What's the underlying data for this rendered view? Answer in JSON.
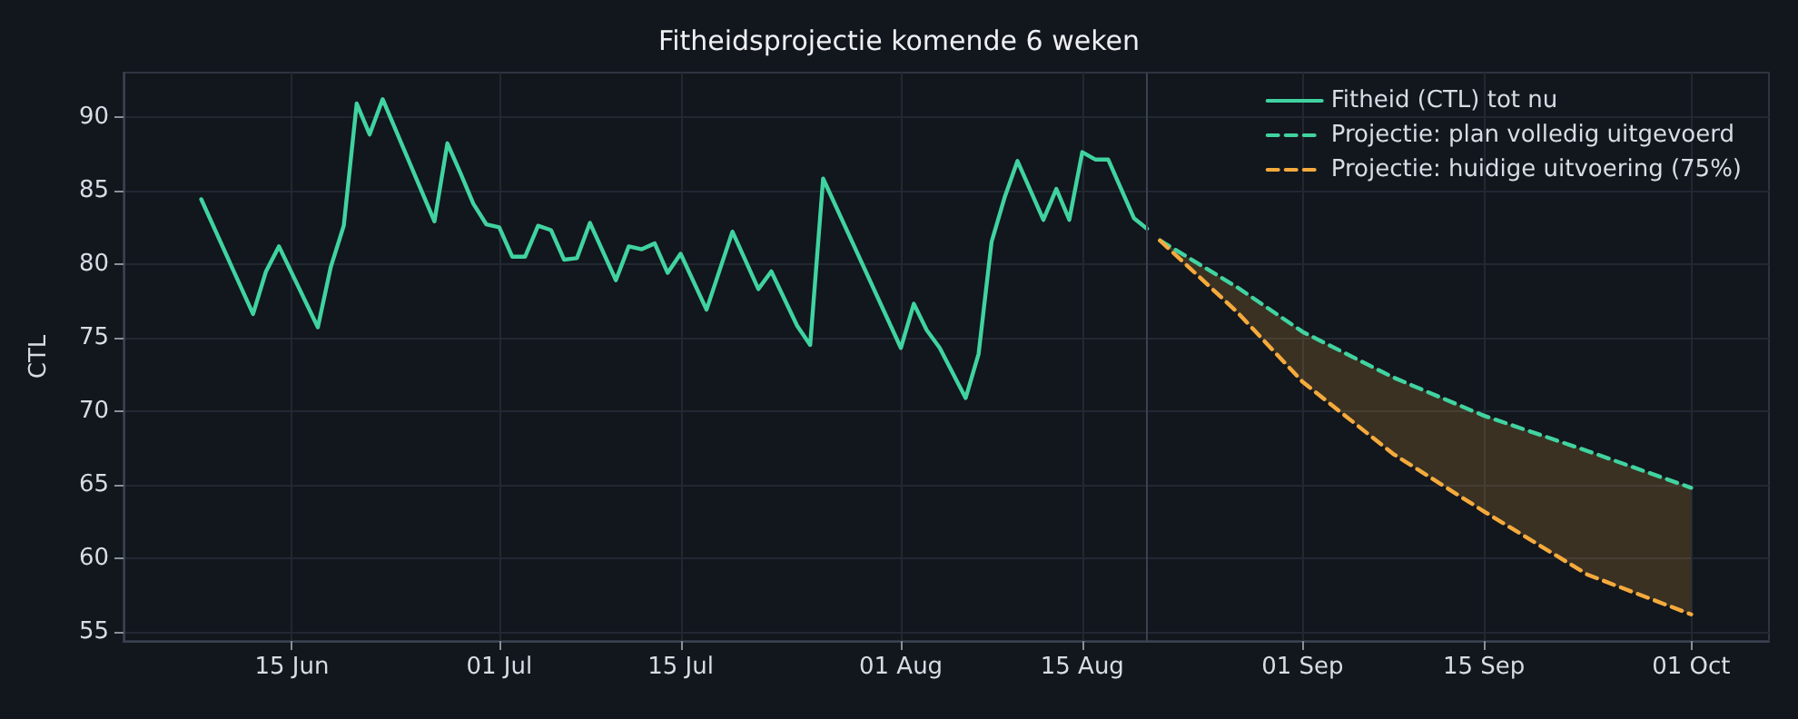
{
  "chart_data": {
    "type": "line",
    "title": "Fitheidsprojectie komende 6 weken",
    "ylabel": "CTL",
    "xlim": [
      "--06-02",
      "--10-07"
    ],
    "xticks": [
      {
        "value": "--06-15",
        "label": "15 Jun"
      },
      {
        "value": "--07-01",
        "label": "01 Jul"
      },
      {
        "value": "--07-15",
        "label": "15 Jul"
      },
      {
        "value": "--08-01",
        "label": "01 Aug"
      },
      {
        "value": "--08-15",
        "label": "15 Aug"
      },
      {
        "value": "--09-01",
        "label": "01 Sep"
      },
      {
        "value": "--09-15",
        "label": "15 Sep"
      },
      {
        "value": "--10-01",
        "label": "01 Oct"
      }
    ],
    "ylim": [
      54.4,
      93
    ],
    "yticks": [
      55,
      60,
      65,
      70,
      75,
      80,
      85,
      90
    ],
    "grid": true,
    "legend": "top right",
    "marker": "none",
    "ref_lines": [
      {
        "axis": "x",
        "value": "--08-20",
        "color": "#3a4150"
      }
    ],
    "series": [
      {
        "name": "Fitheid (CTL) tot nu",
        "color": "#40d3a0",
        "line_style": "solid",
        "x": [
          "--06-08",
          "--06-12",
          "--06-13",
          "--06-14",
          "--06-17",
          "--06-18",
          "--06-19",
          "--06-20",
          "--06-21",
          "--06-22",
          "--06-26",
          "--06-27",
          "--06-28",
          "--06-29",
          "--06-30",
          "--07-01",
          "--07-02",
          "--07-03",
          "--07-04",
          "--07-05",
          "--07-06",
          "--07-07",
          "--07-08",
          "--07-10",
          "--07-11",
          "--07-12",
          "--07-13",
          "--07-14",
          "--07-15",
          "--07-17",
          "--07-19",
          "--07-21",
          "--07-22",
          "--07-24",
          "--07-25",
          "--07-26",
          "--08-01",
          "--08-02",
          "--08-03",
          "--08-04",
          "--08-06",
          "--08-07",
          "--08-08",
          "--08-09",
          "--08-10",
          "--08-12",
          "--08-13",
          "--08-14",
          "--08-15",
          "--08-16",
          "--08-17",
          "--08-19",
          "--08-20"
        ],
        "values": [
          84.4,
          76.6,
          79.5,
          81.2,
          75.7,
          79.8,
          82.6,
          90.9,
          88.8,
          91.2,
          82.9,
          88.2,
          86.2,
          84.1,
          82.7,
          82.5,
          80.5,
          80.5,
          82.6,
          82.3,
          80.3,
          80.4,
          82.8,
          78.9,
          81.2,
          81.0,
          81.4,
          79.4,
          80.7,
          76.9,
          82.2,
          78.3,
          79.5,
          75.8,
          74.5,
          85.8,
          74.3,
          77.3,
          75.5,
          74.3,
          70.9,
          73.9,
          81.5,
          84.5,
          87.0,
          83.0,
          85.1,
          83.0,
          87.6,
          87.1,
          87.1,
          83.1,
          82.4
        ]
      },
      {
        "name": "Projectie: plan volledig uitgevoerd",
        "color": "#40d3a0",
        "line_style": "dashed",
        "x": [
          "--08-21",
          "--08-27",
          "--09-01",
          "--09-08",
          "--09-15",
          "--09-23",
          "--10-01"
        ],
        "values": [
          81.6,
          78.4,
          75.4,
          72.3,
          69.7,
          67.3,
          64.8
        ],
        "lower": [
          81.6,
          76.7,
          72.0,
          67.1,
          63.2,
          58.9,
          56.2
        ],
        "upper": [
          81.6,
          78.4,
          75.4,
          72.3,
          69.7,
          67.3,
          64.8
        ]
      },
      {
        "name": "Projectie: huidige uitvoering (75%)",
        "color": "#f5aa3c",
        "line_style": "dashed",
        "x": [
          "--08-21",
          "--08-27",
          "--09-01",
          "--09-08",
          "--09-15",
          "--09-23",
          "--10-01"
        ],
        "values": [
          81.6,
          76.7,
          72.0,
          67.1,
          63.2,
          58.9,
          56.2
        ]
      }
    ]
  }
}
